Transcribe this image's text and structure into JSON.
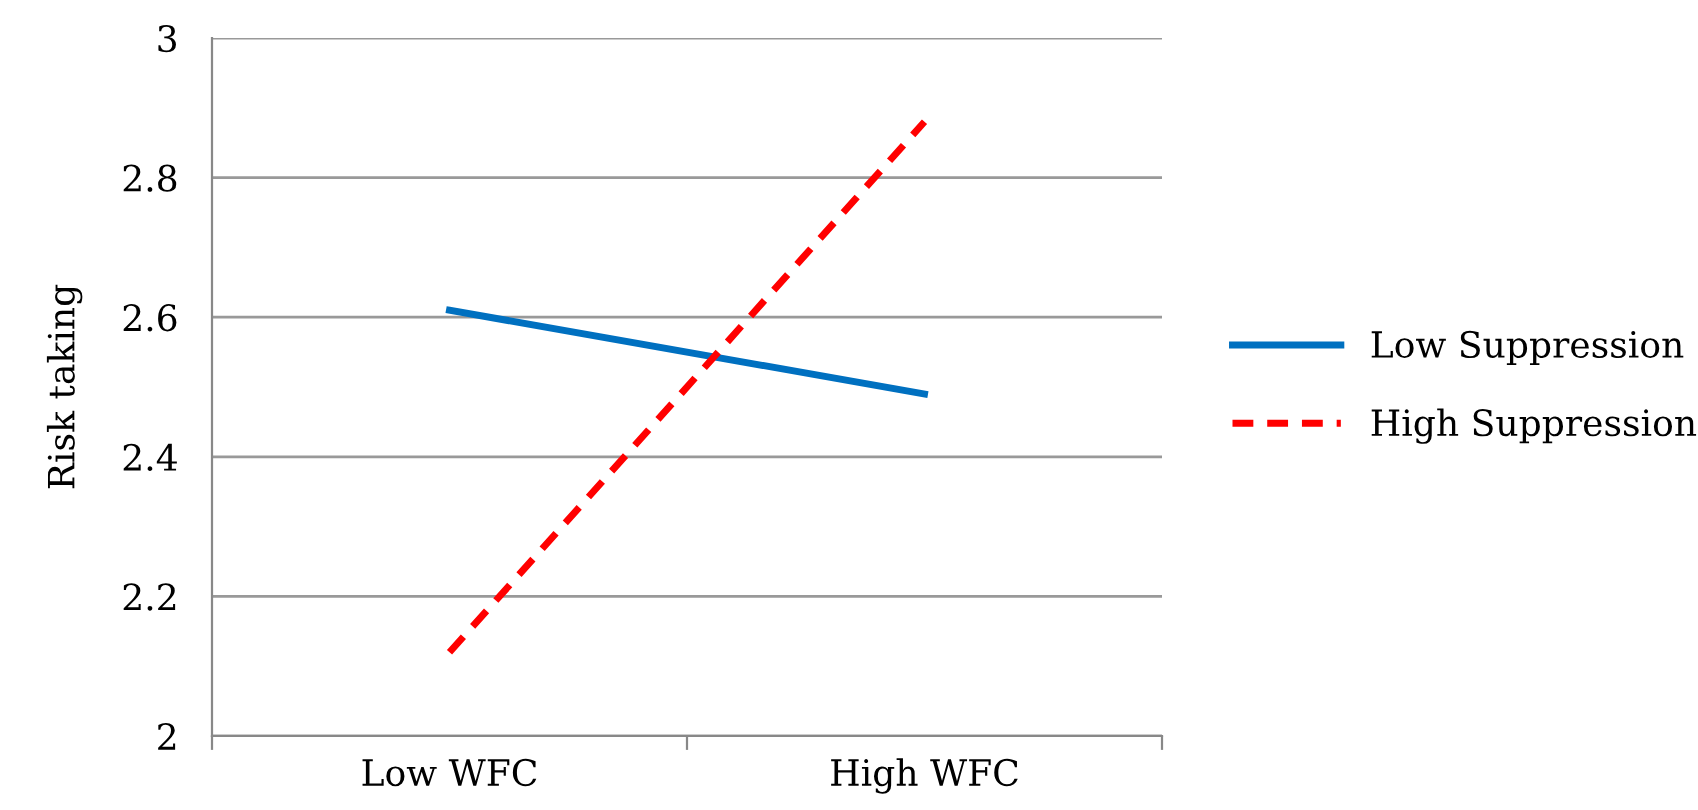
{
  "chart_data": {
    "type": "line",
    "ylabel": "Risk taking",
    "categories": [
      "Low WFC",
      "High WFC"
    ],
    "series": [
      {
        "name": "Low Suppression",
        "color": "#0070c0",
        "values": [
          2.61,
          2.49
        ],
        "line_style": "solid"
      },
      {
        "name": "High Suppression",
        "color": "#ff0000",
        "values": [
          2.12,
          2.88
        ],
        "line_style": "dashed"
      }
    ],
    "ylim": [
      2,
      3
    ],
    "yticks": [
      2,
      2.2,
      2.4,
      2.6,
      2.8,
      3
    ],
    "grid": "y",
    "legend": "right",
    "marker": "none"
  }
}
